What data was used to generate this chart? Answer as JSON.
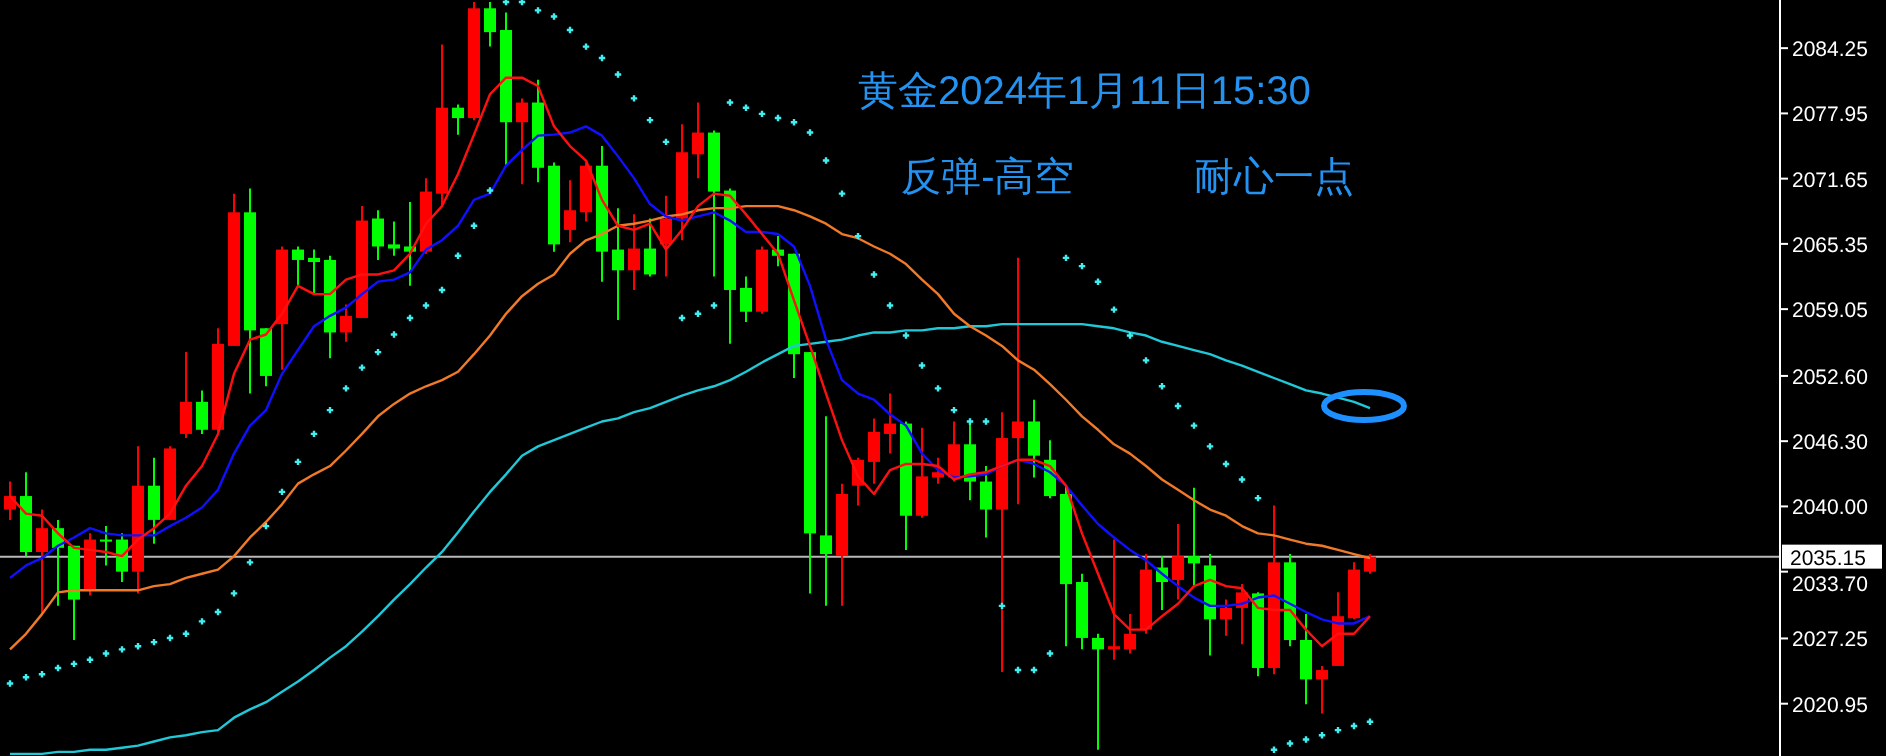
{
  "chart_data": {
    "type": "candlestick",
    "title": "黄金2024年1月11日15:30",
    "subtitle": "反弹-高空　　　耐心一点",
    "categories": [
      null,
      null,
      null,
      null,
      null,
      null,
      null,
      null,
      null,
      null,
      null,
      null,
      null,
      null,
      null,
      null,
      null,
      null,
      null,
      null,
      null,
      null,
      null,
      null,
      null,
      null,
      null,
      null,
      null,
      null,
      null,
      null,
      null,
      null,
      null,
      null,
      null,
      null,
      null,
      null,
      null,
      null,
      null,
      null,
      null,
      null,
      null,
      null,
      null,
      null,
      null,
      null,
      null,
      null,
      null,
      null,
      null,
      null,
      null,
      null,
      null,
      null,
      null,
      null,
      null,
      null,
      null,
      null,
      null,
      null,
      null,
      null,
      null,
      null,
      null,
      null,
      null,
      null,
      null,
      null,
      null,
      null,
      null,
      null,
      null,
      null
    ],
    "ohlc": [
      [
        2039.7,
        2042.4,
        2038.7,
        2041.0
      ],
      [
        2041.0,
        2043.3,
        2035.2,
        2035.6
      ],
      [
        2035.6,
        2039.7,
        2029.6,
        2037.9
      ],
      [
        2037.9,
        2038.7,
        2030.4,
        2036.0
      ],
      [
        2036.2,
        2036.2,
        2027.1,
        2031.0
      ],
      [
        2031.9,
        2037.4,
        2031.4,
        2036.8
      ],
      [
        2036.8,
        2038.1,
        2034.3,
        2036.6
      ],
      [
        2036.8,
        2037.4,
        2032.7,
        2033.7
      ],
      [
        2033.7,
        2045.8,
        2031.6,
        2042.0
      ],
      [
        2042.0,
        2044.7,
        2036.4,
        2038.7
      ],
      [
        2038.7,
        2045.8,
        2038.7,
        2045.6
      ],
      [
        2047.0,
        2054.9,
        2046.6,
        2050.1
      ],
      [
        2050.1,
        2051.2,
        2047.0,
        2047.4
      ],
      [
        2047.4,
        2057.2,
        2047.2,
        2055.7
      ],
      [
        2055.5,
        2070.2,
        2055.5,
        2068.4
      ],
      [
        2068.4,
        2070.7,
        2050.9,
        2057.0
      ],
      [
        2057.2,
        2057.2,
        2051.6,
        2052.6
      ],
      [
        2057.6,
        2065.1,
        2053.2,
        2064.8
      ],
      [
        2064.8,
        2065.1,
        2061.3,
        2063.8
      ],
      [
        2064.0,
        2064.8,
        2060.5,
        2063.6
      ],
      [
        2063.8,
        2064.2,
        2054.3,
        2056.8
      ],
      [
        2056.8,
        2059.5,
        2055.9,
        2058.4
      ],
      [
        2058.2,
        2069.0,
        2058.2,
        2067.6
      ],
      [
        2067.8,
        2068.6,
        2063.8,
        2065.1
      ],
      [
        2065.3,
        2067.5,
        2064.2,
        2064.9
      ],
      [
        2065.1,
        2069.4,
        2061.3,
        2064.6
      ],
      [
        2064.6,
        2071.7,
        2064.4,
        2070.4
      ],
      [
        2070.2,
        2084.6,
        2069.0,
        2078.5
      ],
      [
        2078.5,
        2078.8,
        2075.9,
        2077.5
      ],
      [
        2077.5,
        2088.7,
        2077.3,
        2088.1
      ],
      [
        2088.1,
        2088.7,
        2084.4,
        2085.8
      ],
      [
        2086.0,
        2087.7,
        2072.9,
        2077.1
      ],
      [
        2077.1,
        2079.4,
        2071.1,
        2079.0
      ],
      [
        2079.0,
        2081.2,
        2071.3,
        2072.7
      ],
      [
        2072.9,
        2073.2,
        2064.6,
        2065.3
      ],
      [
        2066.7,
        2071.5,
        2065.5,
        2068.6
      ],
      [
        2068.4,
        2073.2,
        2067.5,
        2072.9
      ],
      [
        2072.9,
        2074.8,
        2061.7,
        2064.6
      ],
      [
        2064.8,
        2068.8,
        2058.0,
        2062.8
      ],
      [
        2062.8,
        2068.2,
        2060.9,
        2064.9
      ],
      [
        2064.9,
        2067.8,
        2062.2,
        2062.4
      ],
      [
        2065.3,
        2070.0,
        2062.2,
        2067.8
      ],
      [
        2067.8,
        2076.9,
        2065.7,
        2074.2
      ],
      [
        2074.0,
        2079.0,
        2071.7,
        2076.1
      ],
      [
        2076.1,
        2076.3,
        2062.2,
        2070.4
      ],
      [
        2070.5,
        2070.7,
        2055.7,
        2060.9
      ],
      [
        2061.1,
        2062.2,
        2057.8,
        2058.8
      ],
      [
        2058.8,
        2065.1,
        2058.6,
        2064.8
      ],
      [
        2064.8,
        2066.1,
        2063.2,
        2064.2
      ],
      [
        2064.4,
        2064.4,
        2052.4,
        2054.7
      ],
      [
        2054.9,
        2054.9,
        2031.6,
        2037.4
      ],
      [
        2037.2,
        2048.7,
        2030.4,
        2035.4
      ],
      [
        2035.2,
        2042.2,
        2030.4,
        2041.2
      ],
      [
        2042.0,
        2044.7,
        2040.1,
        2044.5
      ],
      [
        2044.3,
        2048.5,
        2042.2,
        2047.2
      ],
      [
        2047.0,
        2050.9,
        2045.1,
        2048.0
      ],
      [
        2048.0,
        2048.2,
        2035.8,
        2039.1
      ],
      [
        2039.1,
        2047.6,
        2038.9,
        2042.9
      ],
      [
        2042.8,
        2044.7,
        2042.2,
        2043.3
      ],
      [
        2042.8,
        2048.2,
        2042.4,
        2046.0
      ],
      [
        2046.0,
        2048.4,
        2040.6,
        2042.4
      ],
      [
        2042.4,
        2043.9,
        2037.0,
        2039.7
      ],
      [
        2039.7,
        2049.1,
        2024.0,
        2046.6
      ],
      [
        2046.6,
        2064.0,
        2040.2,
        2048.2
      ],
      [
        2048.2,
        2050.3,
        2042.8,
        2044.9
      ],
      [
        2044.5,
        2046.4,
        2040.8,
        2041.0
      ],
      [
        2041.2,
        2042.0,
        2026.5,
        2032.5
      ],
      [
        2032.7,
        2033.5,
        2026.2,
        2027.3
      ],
      [
        2027.3,
        2027.7,
        2016.5,
        2026.2
      ],
      [
        2026.2,
        2036.8,
        2025.2,
        2026.5
      ],
      [
        2026.2,
        2029.6,
        2025.8,
        2027.7
      ],
      [
        2028.1,
        2035.4,
        2027.7,
        2033.9
      ],
      [
        2034.1,
        2035.2,
        2030.0,
        2032.7
      ],
      [
        2032.9,
        2038.3,
        2031.0,
        2035.2
      ],
      [
        2035.2,
        2041.8,
        2032.3,
        2034.5
      ],
      [
        2034.3,
        2035.4,
        2025.6,
        2029.1
      ],
      [
        2029.1,
        2031.0,
        2027.5,
        2030.2
      ],
      [
        2030.2,
        2032.5,
        2026.7,
        2031.7
      ],
      [
        2031.6,
        2031.7,
        2023.6,
        2024.4
      ],
      [
        2024.4,
        2040.1,
        2023.8,
        2034.6
      ],
      [
        2034.6,
        2035.4,
        2026.5,
        2027.1
      ],
      [
        2027.1,
        2029.6,
        2020.9,
        2023.3
      ],
      [
        2023.3,
        2024.6,
        2020.0,
        2024.2
      ],
      [
        2024.6,
        2031.7,
        2024.6,
        2029.4
      ],
      [
        2029.2,
        2034.6,
        2029.1,
        2033.9
      ],
      [
        2033.7,
        2035.4,
        2033.5,
        2035.15
      ]
    ],
    "colors": [
      "#ff0000",
      "#00ff00",
      "#ff0000",
      "#00ff00",
      "#00ff00",
      "#ff0000",
      "#00ff00",
      "#00ff00",
      "#ff0000",
      "#00ff00",
      "#ff0000",
      "#ff0000",
      "#00ff00",
      "#ff0000",
      "#ff0000",
      "#00ff00",
      "#00ff00",
      "#ff0000",
      "#00ff00",
      "#00ff00",
      "#00ff00",
      "#ff0000",
      "#ff0000",
      "#00ff00",
      "#00ff00",
      "#00ff00",
      "#ff0000",
      "#ff0000",
      "#00ff00",
      "#ff0000",
      "#00ff00",
      "#00ff00",
      "#ff0000",
      "#00ff00",
      "#00ff00",
      "#ff0000",
      "#ff0000",
      "#00ff00",
      "#00ff00",
      "#ff0000",
      "#00ff00",
      "#ff0000",
      "#ff0000",
      "#ff0000",
      "#00ff00",
      "#00ff00",
      "#00ff00",
      "#ff0000",
      "#00ff00",
      "#00ff00",
      "#00ff00",
      "#00ff00",
      "#ff0000",
      "#ff0000",
      "#ff0000",
      "#ff0000",
      "#00ff00",
      "#ff0000",
      "#ff0000",
      "#ff0000",
      "#00ff00",
      "#00ff00",
      "#ff0000",
      "#ff0000",
      "#00ff00",
      "#00ff00",
      "#00ff00",
      "#00ff00",
      "#00ff00",
      "#ff0000",
      "#ff0000",
      "#ff0000",
      "#00ff00",
      "#ff0000",
      "#00ff00",
      "#00ff00",
      "#ff0000",
      "#ff0000",
      "#00ff00",
      "#ff0000",
      "#00ff00",
      "#00ff00",
      "#ff0000",
      "#ff0000",
      "#ff0000",
      "#ff0000"
    ],
    "series": [
      {
        "type": "line",
        "color": "#20c8d8",
        "values": [
          2016.1,
          2016.1,
          2016.1,
          2016.3,
          2016.3,
          2016.5,
          2016.5,
          2016.7,
          2016.9,
          2017.3,
          2017.7,
          2017.9,
          2018.2,
          2018.4,
          2019.6,
          2020.4,
          2021.1,
          2022.1,
          2023.1,
          2024.2,
          2025.4,
          2026.5,
          2027.9,
          2029.4,
          2031.0,
          2032.5,
          2034.1,
          2035.6,
          2037.5,
          2039.5,
          2041.4,
          2043.1,
          2044.9,
          2045.8,
          2046.4,
          2047.0,
          2047.6,
          2048.2,
          2048.5,
          2049.1,
          2049.5,
          2050.1,
          2050.7,
          2051.2,
          2051.6,
          2052.2,
          2053.0,
          2053.9,
          2054.7,
          2055.5,
          2055.7,
          2055.9,
          2056.1,
          2056.5,
          2056.8,
          2056.8,
          2057.0,
          2057.0,
          2057.2,
          2057.2,
          2057.4,
          2057.4,
          2057.6,
          2057.6,
          2057.6,
          2057.6,
          2057.6,
          2057.6,
          2057.4,
          2057.2,
          2056.8,
          2056.5,
          2055.9,
          2055.5,
          2055.1,
          2054.7,
          2054.1,
          2053.6,
          2053.0,
          2052.4,
          2051.8,
          2051.2,
          2050.9,
          2050.5,
          2050.1,
          2049.5
        ]
      },
      {
        "type": "line",
        "color": "#f07a28",
        "values": [
          2026.2,
          2027.7,
          2029.6,
          2031.7,
          2031.9,
          2031.9,
          2031.9,
          2031.9,
          2031.9,
          2032.3,
          2032.5,
          2033.1,
          2033.5,
          2033.9,
          2035.2,
          2037.0,
          2038.5,
          2040.2,
          2042.2,
          2043.1,
          2043.9,
          2045.4,
          2047.0,
          2048.7,
          2049.9,
          2050.9,
          2051.6,
          2052.2,
          2053.0,
          2054.7,
          2056.5,
          2058.6,
          2060.3,
          2061.5,
          2062.4,
          2064.4,
          2065.7,
          2066.3,
          2067.1,
          2067.3,
          2067.6,
          2068.0,
          2068.2,
          2068.6,
          2068.8,
          2068.8,
          2069.0,
          2069.0,
          2069.0,
          2068.6,
          2068.0,
          2067.3,
          2066.3,
          2065.9,
          2065.1,
          2064.4,
          2063.4,
          2061.9,
          2060.5,
          2058.6,
          2057.4,
          2056.5,
          2055.5,
          2054.1,
          2053.2,
          2051.8,
          2050.3,
          2048.7,
          2047.4,
          2046.0,
          2045.1,
          2043.9,
          2042.6,
          2041.6,
          2040.6,
          2039.7,
          2039.1,
          2038.1,
          2037.4,
          2037.2,
          2036.8,
          2036.4,
          2036.2,
          2035.8,
          2035.4,
          2035.0
        ]
      },
      {
        "type": "line",
        "color": "#1010ff",
        "values": [
          2033.1,
          2034.3,
          2035.0,
          2036.2,
          2037.0,
          2037.9,
          2037.4,
          2037.2,
          2037.2,
          2037.2,
          2038.1,
          2038.9,
          2039.9,
          2041.6,
          2045.1,
          2047.8,
          2049.3,
          2052.8,
          2055.1,
          2057.4,
          2058.4,
          2059.2,
          2060.5,
          2061.7,
          2061.9,
          2062.6,
          2064.8,
          2065.7,
          2067.1,
          2069.6,
          2070.2,
          2072.9,
          2074.4,
          2075.8,
          2075.9,
          2076.1,
          2076.7,
          2075.8,
          2073.8,
          2071.7,
          2069.2,
          2068.0,
          2067.6,
          2068.0,
          2068.4,
          2067.6,
          2066.5,
          2066.5,
          2066.3,
          2065.1,
          2061.3,
          2056.1,
          2052.2,
          2050.9,
          2050.3,
          2048.9,
          2047.8,
          2045.1,
          2043.5,
          2042.8,
          2042.9,
          2043.1,
          2043.9,
          2044.5,
          2044.1,
          2043.3,
          2042.0,
          2040.1,
          2038.3,
          2037.0,
          2035.8,
          2034.8,
          2033.5,
          2032.3,
          2031.2,
          2030.4,
          2030.4,
          2030.6,
          2031.2,
          2031.4,
          2030.6,
          2029.8,
          2029.1,
          2028.7,
          2028.7,
          2029.4
        ]
      },
      {
        "type": "line",
        "color": "#ff1010",
        "values": [
          2041.0,
          2039.3,
          2039.1,
          2037.4,
          2036.0,
          2035.8,
          2035.6,
          2035.2,
          2036.8,
          2037.9,
          2039.3,
          2042.0,
          2043.9,
          2047.0,
          2052.8,
          2056.1,
          2056.6,
          2058.6,
          2061.3,
          2060.5,
          2060.5,
          2061.9,
          2062.4,
          2062.4,
          2062.8,
          2064.4,
          2067.3,
          2069.0,
          2072.1,
          2075.9,
          2079.8,
          2081.4,
          2081.4,
          2080.6,
          2076.7,
          2074.8,
          2073.4,
          2069.6,
          2067.1,
          2066.7,
          2067.3,
          2064.8,
          2066.7,
          2069.0,
          2070.2,
          2070.0,
          2068.2,
          2066.3,
          2064.4,
          2059.9,
          2055.5,
          2050.9,
          2046.4,
          2042.9,
          2041.2,
          2043.5,
          2044.1,
          2044.1,
          2043.9,
          2042.6,
          2043.1,
          2043.3,
          2043.9,
          2044.5,
          2044.5,
          2043.9,
          2042.0,
          2037.4,
          2033.5,
          2029.6,
          2028.1,
          2028.1,
          2029.4,
          2030.6,
          2032.3,
          2032.9,
          2032.3,
          2032.1,
          2030.2,
          2030.0,
          2030.0,
          2028.1,
          2026.5,
          2027.7,
          2027.7,
          2029.4
        ]
      },
      {
        "type": "scatter",
        "marker": "cross",
        "color": "#40f0f0",
        "values": [
          2022.9,
          2023.5,
          2023.8,
          2024.4,
          2024.8,
          2025.2,
          2025.8,
          2026.2,
          2026.5,
          2026.9,
          2027.3,
          2027.7,
          2028.9,
          2029.8,
          2031.6,
          2034.6,
          2038.1,
          2041.4,
          2044.3,
          2047.0,
          2049.3,
          2051.4,
          2053.4,
          2054.9,
          2056.6,
          2058.2,
          2059.4,
          2060.9,
          2064.2,
          2067.1,
          2070.5,
          2088.7,
          2088.7,
          2087.9,
          2087.3,
          2086.0,
          2084.4,
          2083.3,
          2081.7,
          2079.4,
          2077.3,
          2075.2,
          2058.2,
          2058.6,
          2059.4,
          2079.0,
          2078.5,
          2077.9,
          2077.5,
          2077.1,
          2076.1,
          2073.4,
          2070.2,
          2066.1,
          2062.4,
          2059.4,
          2056.5,
          2053.6,
          2051.4,
          2049.3,
          2048.2,
          2048.2,
          2030.4,
          2024.2,
          2024.2,
          2025.8,
          2064.0,
          2063.2,
          2061.7,
          2059.0,
          2056.5,
          2054.1,
          2051.6,
          2049.7,
          2047.8,
          2045.8,
          2044.1,
          2042.6,
          2040.8,
          2016.5,
          2017.1,
          2017.5,
          2017.9,
          2018.4,
          2018.8,
          2019.2
        ]
      }
    ],
    "ylim": [
      2015.9,
      2088.9
    ],
    "yticks": [
      2020.95,
      2027.25,
      {
        "value": 2033.7,
        "label": "2033.70"
      },
      {
        "value": 2040,
        "label": "2040.00"
      },
      {
        "value": 2046.3,
        "label": "2046.30"
      },
      {
        "value": 2052.6,
        "label": "2052.60"
      },
      2059.05,
      2065.35,
      2071.65,
      2077.95,
      2084.25
    ],
    "ref_lines": [
      {
        "axis": "y",
        "value": 2035.15,
        "label": "2035.15",
        "color": "#b8b8b8"
      }
    ],
    "tick_labels": "y",
    "grid": false
  }
}
